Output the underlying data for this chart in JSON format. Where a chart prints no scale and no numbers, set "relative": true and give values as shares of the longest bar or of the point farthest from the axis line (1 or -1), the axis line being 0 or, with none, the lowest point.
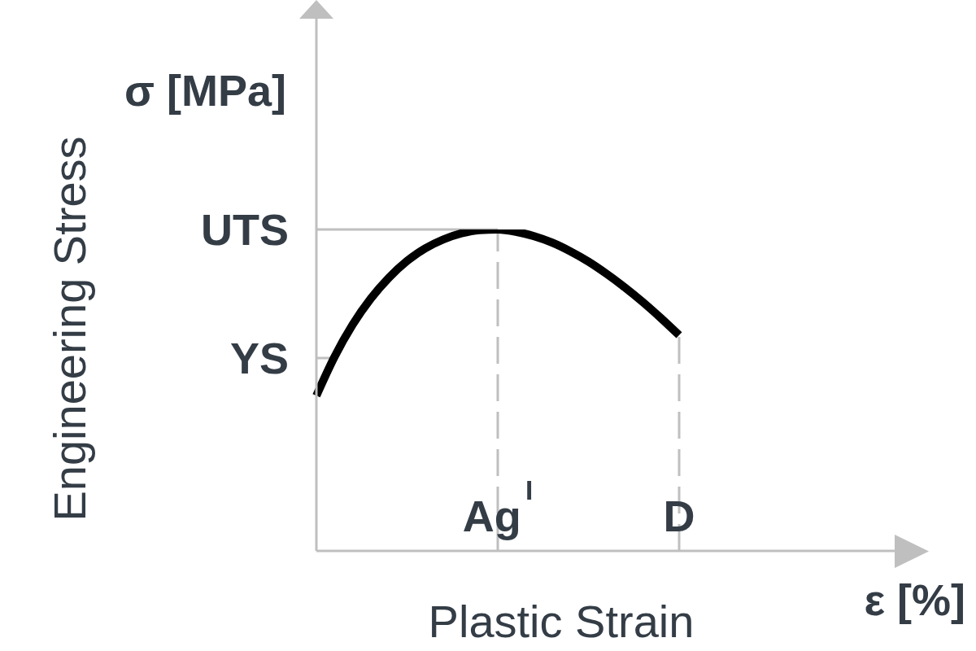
{
  "chart_data": {
    "type": "line",
    "relative": true,
    "xlabel": "Plastic Strain",
    "ylabel": "Engineering Stress",
    "annotations": [
      "σ [MPa]",
      "ε [%]"
    ],
    "categories": [
      null,
      null,
      null,
      null,
      null,
      null,
      null,
      null,
      null,
      null,
      "Ag$^{I}$",
      null,
      null,
      null,
      null,
      null,
      null,
      null,
      null,
      null,
      "D"
    ],
    "values": [
      0.483,
      0.604,
      0.704,
      0.785,
      0.85,
      0.902,
      0.941,
      0.969,
      0.988,
      0.998,
      1,
      0.993,
      0.979,
      0.959,
      0.932,
      0.9,
      0.862,
      0.82,
      0.774,
      0.724,
      0.671
    ],
    "color": "#000000",
    "ref_lines": [
      {
        "axis": "y",
        "value": 1,
        "label": "UTS",
        "color": "#bfbfbf",
        "line_style": "solid"
      },
      {
        "axis": "y",
        "value": 0.6,
        "label": "YS",
        "color": "#bfbfbf",
        "line_style": "solid"
      },
      {
        "axis": "x",
        "value": "Ag$^{I}$",
        "color": "#bfbfbf",
        "line_style": "dashed"
      },
      {
        "axis": "x",
        "value": "D",
        "color": "#bfbfbf",
        "line_style": "dashed"
      }
    ],
    "tick_labels": "x"
  }
}
